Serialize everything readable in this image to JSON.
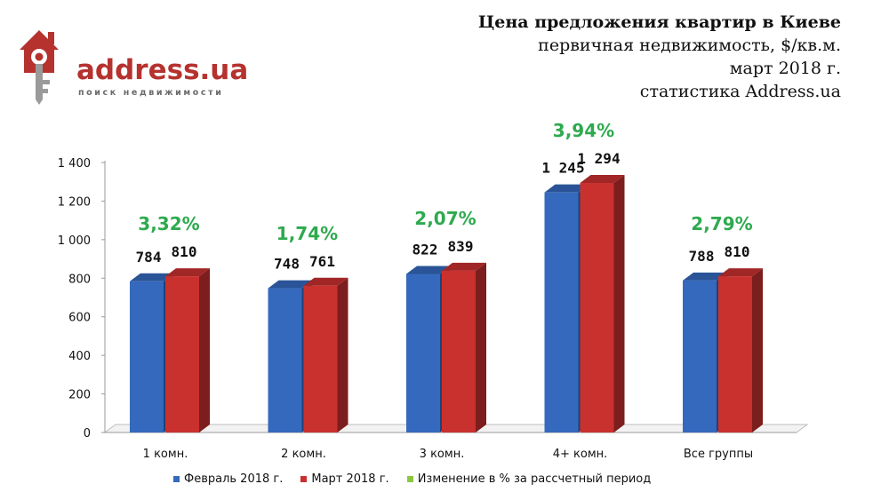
{
  "logo": {
    "text": "address.ua",
    "subtitle": "поиск недвижимости"
  },
  "title": {
    "line1": "Цена предложения квартир в Киеве",
    "line2": "первичная недвижимость, $/кв.м.",
    "line3": "март 2018 г.",
    "line4": "статистика Address.ua"
  },
  "colors": {
    "feb": "#3569bd",
    "mar": "#c8312e",
    "change": "#8dc63f",
    "change_label": "#2eaa4e",
    "logo": "#b5322f"
  },
  "legend": {
    "feb": "Февраль 2018 г.",
    "mar": "Март 2018 г.",
    "change": "Изменение в % за рассчетный период"
  },
  "chart_data": {
    "type": "bar",
    "title": "Цена предложения квартир в Киеве",
    "categories": [
      "1 комн.",
      "2 комн.",
      "3 комн.",
      "4+ комн.",
      "Все группы"
    ],
    "series": [
      {
        "name": "Февраль 2018 г.",
        "values": [
          784,
          748,
          822,
          1245,
          788
        ],
        "labels": [
          "784",
          "748",
          "822",
          "1 245",
          "788"
        ]
      },
      {
        "name": "Март 2018 г.",
        "values": [
          810,
          761,
          839,
          1294,
          810
        ],
        "labels": [
          "810",
          "761",
          "839",
          "1 294",
          "810"
        ]
      }
    ],
    "changes": [
      "3,32%",
      "1,74%",
      "2,07%",
      "3,94%",
      "2,79%"
    ],
    "y_ticks": [
      "0",
      "200",
      "400",
      "600",
      "800",
      "1 000",
      "1 200",
      "1 400"
    ],
    "ylim": [
      0,
      1400
    ],
    "grid": false,
    "legend_position": "bottom"
  }
}
